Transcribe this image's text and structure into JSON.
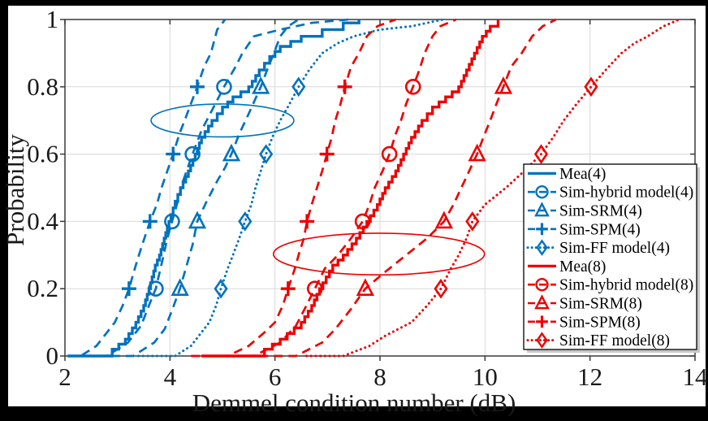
{
  "chart_data": {
    "type": "line",
    "subtype": "empirical-cdf",
    "title": "",
    "xlabel": "Demmel condition number (dB)",
    "ylabel": "Probability",
    "xlim": [
      2,
      14
    ],
    "ylim": [
      0,
      1
    ],
    "xticks": [
      2,
      4,
      6,
      8,
      10,
      12,
      14
    ],
    "xticklabels": [
      "2",
      "4",
      "6",
      "8",
      "10",
      "12",
      "14"
    ],
    "yticks": [
      0,
      0.2,
      0.4,
      0.6,
      0.8,
      1
    ],
    "yticklabels": [
      "0",
      "0.2",
      "0.4",
      "0.6",
      "0.8",
      "1"
    ],
    "grid": true,
    "legend_position": "inside-lower-right",
    "colors": {
      "blue": "#0072BD",
      "red": "#EE0000",
      "grid": "#d9d9d9",
      "axis": "#3a3a3a",
      "text": "#1a1a1a"
    },
    "series": [
      {
        "name": "Mea(4)",
        "color": "#0072BD",
        "style": "solid",
        "marker": "none",
        "points": [
          [
            2.5,
            0
          ],
          [
            2.9,
            0.02
          ],
          [
            3.15,
            0.05
          ],
          [
            3.35,
            0.1
          ],
          [
            3.5,
            0.15
          ],
          [
            3.6,
            0.2
          ],
          [
            3.72,
            0.27
          ],
          [
            3.8,
            0.3
          ],
          [
            3.98,
            0.4
          ],
          [
            4.1,
            0.46
          ],
          [
            4.2,
            0.5
          ],
          [
            4.35,
            0.55
          ],
          [
            4.48,
            0.6
          ],
          [
            4.6,
            0.65
          ],
          [
            4.8,
            0.7
          ],
          [
            5.0,
            0.74
          ],
          [
            5.2,
            0.77
          ],
          [
            5.5,
            0.8
          ],
          [
            5.7,
            0.85
          ],
          [
            5.9,
            0.89
          ],
          [
            6.1,
            0.92
          ],
          [
            6.5,
            0.95
          ],
          [
            6.9,
            0.97
          ],
          [
            7.3,
            0.99
          ],
          [
            7.6,
            1
          ]
        ],
        "marker_points": []
      },
      {
        "name": "Sim-hybrid model(4)",
        "color": "#0072BD",
        "style": "dashed",
        "marker": "circle",
        "points": [
          [
            2.8,
            0
          ],
          [
            3.2,
            0.04
          ],
          [
            3.45,
            0.09
          ],
          [
            3.6,
            0.15
          ],
          [
            3.73,
            0.2
          ],
          [
            3.85,
            0.28
          ],
          [
            3.95,
            0.35
          ],
          [
            4.04,
            0.4
          ],
          [
            4.15,
            0.46
          ],
          [
            4.25,
            0.52
          ],
          [
            4.43,
            0.6
          ],
          [
            4.6,
            0.67
          ],
          [
            4.8,
            0.73
          ],
          [
            5.03,
            0.8
          ],
          [
            5.25,
            0.86
          ],
          [
            5.38,
            0.9
          ],
          [
            5.6,
            0.95
          ],
          [
            6.1,
            0.97
          ],
          [
            6.7,
            0.99
          ],
          [
            7.4,
            1
          ]
        ],
        "marker_points": [
          [
            3.73,
            0.2
          ],
          [
            4.04,
            0.4
          ],
          [
            4.43,
            0.6
          ],
          [
            5.03,
            0.8
          ]
        ]
      },
      {
        "name": "Sim-SRM(4)",
        "color": "#0072BD",
        "style": "dashed",
        "marker": "triangle",
        "points": [
          [
            3.3,
            0
          ],
          [
            3.7,
            0.04
          ],
          [
            3.9,
            0.08
          ],
          [
            4.05,
            0.14
          ],
          [
            4.19,
            0.2
          ],
          [
            4.32,
            0.27
          ],
          [
            4.43,
            0.33
          ],
          [
            4.52,
            0.4
          ],
          [
            4.7,
            0.46
          ],
          [
            4.9,
            0.52
          ],
          [
            5.05,
            0.56
          ],
          [
            5.17,
            0.6
          ],
          [
            5.32,
            0.66
          ],
          [
            5.5,
            0.72
          ],
          [
            5.73,
            0.8
          ],
          [
            5.85,
            0.85
          ],
          [
            5.98,
            0.9
          ],
          [
            6.1,
            0.95
          ],
          [
            6.25,
            0.98
          ],
          [
            6.45,
            1
          ]
        ],
        "marker_points": [
          [
            4.19,
            0.2
          ],
          [
            4.52,
            0.4
          ],
          [
            5.17,
            0.6
          ],
          [
            5.73,
            0.8
          ]
        ]
      },
      {
        "name": "Sim-SPM(4)",
        "color": "#0072BD",
        "style": "dashed",
        "marker": "plus",
        "points": [
          [
            2.3,
            0
          ],
          [
            2.6,
            0.03
          ],
          [
            2.8,
            0.07
          ],
          [
            2.95,
            0.1
          ],
          [
            3.1,
            0.15
          ],
          [
            3.22,
            0.2
          ],
          [
            3.35,
            0.27
          ],
          [
            3.45,
            0.32
          ],
          [
            3.62,
            0.4
          ],
          [
            3.75,
            0.45
          ],
          [
            3.84,
            0.5
          ],
          [
            3.95,
            0.55
          ],
          [
            4.06,
            0.6
          ],
          [
            4.18,
            0.66
          ],
          [
            4.28,
            0.7
          ],
          [
            4.4,
            0.75
          ],
          [
            4.52,
            0.8
          ],
          [
            4.65,
            0.86
          ],
          [
            4.78,
            0.9
          ],
          [
            4.9,
            0.97
          ],
          [
            5.05,
            1
          ]
        ],
        "marker_points": [
          [
            3.22,
            0.2
          ],
          [
            3.62,
            0.4
          ],
          [
            4.06,
            0.6
          ],
          [
            4.52,
            0.8
          ]
        ]
      },
      {
        "name": "Sim-FF model(4)",
        "color": "#0072BD",
        "style": "dotted",
        "marker": "diamond",
        "points": [
          [
            4.1,
            0
          ],
          [
            4.4,
            0.03
          ],
          [
            4.6,
            0.07
          ],
          [
            4.75,
            0.1
          ],
          [
            4.88,
            0.15
          ],
          [
            4.97,
            0.2
          ],
          [
            5.1,
            0.26
          ],
          [
            5.2,
            0.3
          ],
          [
            5.32,
            0.35
          ],
          [
            5.43,
            0.4
          ],
          [
            5.55,
            0.45
          ],
          [
            5.63,
            0.5
          ],
          [
            5.73,
            0.55
          ],
          [
            5.83,
            0.6
          ],
          [
            5.95,
            0.65
          ],
          [
            6.1,
            0.7
          ],
          [
            6.28,
            0.75
          ],
          [
            6.45,
            0.8
          ],
          [
            6.65,
            0.85
          ],
          [
            6.9,
            0.9
          ],
          [
            7.2,
            0.93
          ],
          [
            7.5,
            0.95
          ],
          [
            8.0,
            0.97
          ],
          [
            8.6,
            0.98
          ],
          [
            9.2,
            1
          ]
        ],
        "marker_points": [
          [
            4.97,
            0.2
          ],
          [
            5.43,
            0.4
          ],
          [
            5.83,
            0.6
          ],
          [
            6.45,
            0.8
          ]
        ]
      },
      {
        "name": "Mea(8)",
        "color": "#EE0000",
        "style": "solid",
        "marker": "none",
        "points": [
          [
            5.3,
            0
          ],
          [
            5.8,
            0.02
          ],
          [
            6.1,
            0.05
          ],
          [
            6.5,
            0.1
          ],
          [
            6.7,
            0.15
          ],
          [
            6.85,
            0.2
          ],
          [
            7.1,
            0.27
          ],
          [
            7.3,
            0.3
          ],
          [
            7.55,
            0.35
          ],
          [
            7.75,
            0.4
          ],
          [
            7.95,
            0.45
          ],
          [
            8.1,
            0.5
          ],
          [
            8.3,
            0.55
          ],
          [
            8.45,
            0.6
          ],
          [
            8.6,
            0.65
          ],
          [
            8.8,
            0.7
          ],
          [
            9.0,
            0.74
          ],
          [
            9.25,
            0.77
          ],
          [
            9.5,
            0.8
          ],
          [
            9.65,
            0.85
          ],
          [
            9.8,
            0.9
          ],
          [
            9.95,
            0.95
          ],
          [
            10.1,
            0.98
          ],
          [
            10.25,
            1
          ]
        ],
        "marker_points": []
      },
      {
        "name": "Sim-hybrid model(8)",
        "color": "#EE0000",
        "style": "dashed",
        "marker": "circle",
        "points": [
          [
            5.6,
            0
          ],
          [
            6.1,
            0.04
          ],
          [
            6.4,
            0.09
          ],
          [
            6.6,
            0.15
          ],
          [
            6.76,
            0.2
          ],
          [
            6.95,
            0.26
          ],
          [
            7.2,
            0.3
          ],
          [
            7.45,
            0.35
          ],
          [
            7.67,
            0.4
          ],
          [
            7.8,
            0.45
          ],
          [
            7.9,
            0.5
          ],
          [
            8.05,
            0.55
          ],
          [
            8.18,
            0.6
          ],
          [
            8.3,
            0.66
          ],
          [
            8.4,
            0.7
          ],
          [
            8.5,
            0.75
          ],
          [
            8.63,
            0.8
          ],
          [
            8.75,
            0.85
          ],
          [
            8.85,
            0.9
          ],
          [
            9.0,
            0.95
          ],
          [
            9.15,
            0.98
          ],
          [
            9.45,
            1
          ]
        ],
        "marker_points": [
          [
            6.76,
            0.2
          ],
          [
            7.67,
            0.4
          ],
          [
            8.18,
            0.6
          ],
          [
            8.63,
            0.8
          ]
        ]
      },
      {
        "name": "Sim-SRM(8)",
        "color": "#EE0000",
        "style": "dashed",
        "marker": "triangle",
        "points": [
          [
            6.4,
            0
          ],
          [
            6.9,
            0.04
          ],
          [
            7.15,
            0.08
          ],
          [
            7.45,
            0.14
          ],
          [
            7.72,
            0.2
          ],
          [
            8.1,
            0.25
          ],
          [
            8.5,
            0.3
          ],
          [
            8.9,
            0.35
          ],
          [
            9.22,
            0.4
          ],
          [
            9.4,
            0.45
          ],
          [
            9.55,
            0.5
          ],
          [
            9.7,
            0.55
          ],
          [
            9.85,
            0.6
          ],
          [
            9.97,
            0.65
          ],
          [
            10.1,
            0.7
          ],
          [
            10.22,
            0.75
          ],
          [
            10.35,
            0.8
          ],
          [
            10.5,
            0.86
          ],
          [
            10.7,
            0.9
          ],
          [
            10.9,
            0.95
          ],
          [
            11.1,
            0.98
          ],
          [
            11.35,
            1
          ]
        ],
        "marker_points": [
          [
            7.72,
            0.2
          ],
          [
            9.22,
            0.4
          ],
          [
            9.85,
            0.6
          ],
          [
            10.35,
            0.8
          ]
        ]
      },
      {
        "name": "Sim-SPM(8)",
        "color": "#EE0000",
        "style": "dashed",
        "marker": "plus",
        "points": [
          [
            5.1,
            0
          ],
          [
            5.5,
            0.03
          ],
          [
            5.8,
            0.07
          ],
          [
            6.0,
            0.1
          ],
          [
            6.15,
            0.15
          ],
          [
            6.25,
            0.2
          ],
          [
            6.38,
            0.26
          ],
          [
            6.45,
            0.3
          ],
          [
            6.55,
            0.35
          ],
          [
            6.61,
            0.4
          ],
          [
            6.7,
            0.45
          ],
          [
            6.8,
            0.5
          ],
          [
            6.9,
            0.55
          ],
          [
            6.99,
            0.6
          ],
          [
            7.08,
            0.65
          ],
          [
            7.15,
            0.7
          ],
          [
            7.25,
            0.75
          ],
          [
            7.33,
            0.8
          ],
          [
            7.45,
            0.86
          ],
          [
            7.6,
            0.9
          ],
          [
            7.75,
            0.95
          ],
          [
            7.95,
            0.98
          ],
          [
            8.3,
            1
          ]
        ],
        "marker_points": [
          [
            6.25,
            0.2
          ],
          [
            6.61,
            0.4
          ],
          [
            6.99,
            0.6
          ],
          [
            7.33,
            0.8
          ]
        ]
      },
      {
        "name": "Sim-FF model(8)",
        "color": "#EE0000",
        "style": "dotted",
        "marker": "diamond",
        "points": [
          [
            7.3,
            0
          ],
          [
            7.8,
            0.03
          ],
          [
            8.1,
            0.06
          ],
          [
            8.6,
            0.1
          ],
          [
            8.9,
            0.15
          ],
          [
            9.16,
            0.2
          ],
          [
            9.35,
            0.26
          ],
          [
            9.5,
            0.3
          ],
          [
            9.65,
            0.35
          ],
          [
            9.76,
            0.4
          ],
          [
            10.0,
            0.45
          ],
          [
            10.4,
            0.5
          ],
          [
            10.75,
            0.55
          ],
          [
            11.07,
            0.6
          ],
          [
            11.3,
            0.65
          ],
          [
            11.5,
            0.7
          ],
          [
            11.75,
            0.75
          ],
          [
            12.02,
            0.8
          ],
          [
            12.3,
            0.85
          ],
          [
            12.6,
            0.9
          ],
          [
            12.85,
            0.93
          ],
          [
            13.1,
            0.95
          ],
          [
            13.4,
            0.98
          ],
          [
            13.7,
            1
          ]
        ],
        "marker_points": [
          [
            9.16,
            0.2
          ],
          [
            9.76,
            0.4
          ],
          [
            11.07,
            0.6
          ],
          [
            12.02,
            0.8
          ]
        ]
      }
    ],
    "annotations": [
      {
        "type": "ellipse",
        "color": "#0072BD",
        "cx_db": 5.0,
        "cy_p": 0.7,
        "rx_db": 1.36,
        "ry_p": 0.049
      },
      {
        "type": "ellipse",
        "color": "#EE0000",
        "cx_db": 7.98,
        "cy_p": 0.303,
        "rx_db": 2.01,
        "ry_p": 0.062
      }
    ]
  },
  "labels": {
    "xlabel": "Demmel condition number (dB)",
    "ylabel": "Probability"
  }
}
